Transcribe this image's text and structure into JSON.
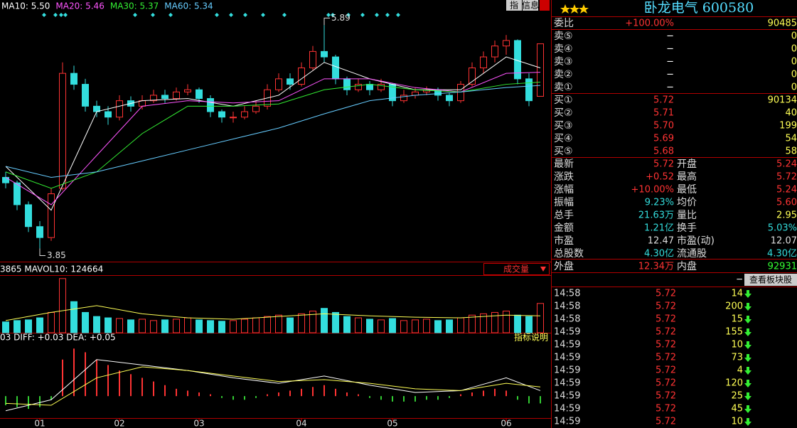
{
  "chart_data": {
    "type": "candlestick",
    "ma_legend": [
      {
        "label": "MA10: 5.50",
        "color": "#ffffff"
      },
      {
        "label": "MA20: 5.46",
        "color": "#ff55ff"
      },
      {
        "label": "MA30: 5.37",
        "color": "#33ee33"
      },
      {
        "label": "MA60: 5.34",
        "color": "#66ccff"
      }
    ],
    "ylim": [
      3.73,
      6.12
    ],
    "candles": [
      [
        4.5,
        4.55,
        4.4,
        4.45
      ],
      [
        4.45,
        4.47,
        4.2,
        4.25
      ],
      [
        4.25,
        4.28,
        4.0,
        4.05
      ],
      [
        4.05,
        4.1,
        3.85,
        3.95
      ],
      [
        3.95,
        4.4,
        3.92,
        4.35
      ],
      [
        4.4,
        5.55,
        4.38,
        5.45
      ],
      [
        5.45,
        5.52,
        5.3,
        5.35
      ],
      [
        5.35,
        5.4,
        5.1,
        5.15
      ],
      [
        5.15,
        5.2,
        5.05,
        5.1
      ],
      [
        5.1,
        5.15,
        4.98,
        5.05
      ],
      [
        5.05,
        5.25,
        5.02,
        5.2
      ],
      [
        5.2,
        5.24,
        5.1,
        5.15
      ],
      [
        5.15,
        5.25,
        5.12,
        5.2
      ],
      [
        5.2,
        5.3,
        5.18,
        5.25
      ],
      [
        5.25,
        5.3,
        5.18,
        5.22
      ],
      [
        5.22,
        5.32,
        5.2,
        5.28
      ],
      [
        5.28,
        5.35,
        5.25,
        5.3
      ],
      [
        5.3,
        5.32,
        5.18,
        5.22
      ],
      [
        5.22,
        5.25,
        5.05,
        5.1
      ],
      [
        5.1,
        5.12,
        5.0,
        5.05
      ],
      [
        5.05,
        5.1,
        5.0,
        5.05
      ],
      [
        5.05,
        5.15,
        5.03,
        5.1
      ],
      [
        5.1,
        5.2,
        5.08,
        5.15
      ],
      [
        5.15,
        5.35,
        5.12,
        5.3
      ],
      [
        5.3,
        5.45,
        5.28,
        5.4
      ],
      [
        5.4,
        5.45,
        5.3,
        5.35
      ],
      [
        5.35,
        5.55,
        5.33,
        5.5
      ],
      [
        5.5,
        5.7,
        5.48,
        5.65
      ],
      [
        5.65,
        5.89,
        5.55,
        5.6
      ],
      [
        5.6,
        5.62,
        5.35,
        5.4
      ],
      [
        5.4,
        5.42,
        5.25,
        5.3
      ],
      [
        5.3,
        5.4,
        5.28,
        5.35
      ],
      [
        5.35,
        5.38,
        5.25,
        5.3
      ],
      [
        5.3,
        5.4,
        5.28,
        5.35
      ],
      [
        5.35,
        5.36,
        5.15,
        5.2
      ],
      [
        5.2,
        5.3,
        5.18,
        5.25
      ],
      [
        5.25,
        5.32,
        5.22,
        5.28
      ],
      [
        5.28,
        5.33,
        5.25,
        5.3
      ],
      [
        5.3,
        5.32,
        5.2,
        5.25
      ],
      [
        5.25,
        5.27,
        5.15,
        5.2
      ],
      [
        5.2,
        5.38,
        5.18,
        5.35
      ],
      [
        5.35,
        5.55,
        5.33,
        5.5
      ],
      [
        5.5,
        5.65,
        5.45,
        5.6
      ],
      [
        5.6,
        5.75,
        5.55,
        5.7
      ],
      [
        5.7,
        5.8,
        5.62,
        5.75
      ],
      [
        5.75,
        5.76,
        5.35,
        5.4
      ],
      [
        5.4,
        5.45,
        5.15,
        5.2
      ],
      [
        5.24,
        5.72,
        5.24,
        5.72
      ]
    ],
    "high": {
      "index": 28,
      "value": 5.89
    },
    "low": {
      "index": 3,
      "value": 3.85
    },
    "ma": {
      "x": [
        0,
        4,
        8,
        12,
        16,
        20,
        24,
        28,
        32,
        36,
        40,
        44,
        47
      ],
      "series": [
        {
          "color": "#ffffff",
          "values": [
            4.6,
            4.2,
            5.1,
            5.2,
            5.22,
            5.15,
            5.25,
            5.55,
            5.4,
            5.3,
            5.3,
            5.6,
            5.5
          ]
        },
        {
          "color": "#ff55ff",
          "values": [
            4.5,
            4.25,
            4.7,
            5.15,
            5.2,
            5.18,
            5.2,
            5.4,
            5.4,
            5.32,
            5.28,
            5.45,
            5.46
          ]
        },
        {
          "color": "#33ee33",
          "values": [
            4.55,
            4.4,
            4.55,
            4.9,
            5.15,
            5.15,
            5.17,
            5.3,
            5.35,
            5.3,
            5.28,
            5.35,
            5.37
          ]
        },
        {
          "color": "#66ccff",
          "values": [
            4.6,
            4.5,
            4.55,
            4.65,
            4.75,
            4.85,
            4.95,
            5.08,
            5.2,
            5.25,
            5.28,
            5.32,
            5.34
          ]
        }
      ]
    },
    "volume": {
      "legend": "3865 MAVOL10: 124664",
      "ylim": [
        0,
        420000
      ],
      "values": [
        80000,
        90000,
        95000,
        110000,
        150000,
        400000,
        230000,
        150000,
        120000,
        110000,
        105000,
        95000,
        100000,
        90000,
        95000,
        100000,
        110000,
        95000,
        90000,
        85000,
        90000,
        100000,
        110000,
        120000,
        130000,
        110000,
        140000,
        160000,
        180000,
        150000,
        120000,
        110000,
        100000,
        95000,
        105000,
        90000,
        95000,
        100000,
        90000,
        95000,
        110000,
        130000,
        140000,
        150000,
        160000,
        130000,
        120000,
        216300
      ],
      "mavol": [
        90000,
        150000,
        200000,
        140000,
        110000,
        100000,
        120000,
        140000,
        125000,
        115000,
        110000,
        130000,
        124664
      ]
    },
    "macd": {
      "legend": "03 DIFF: +0.03 DEA: +0.05",
      "ylim": [
        -0.12,
        0.3
      ],
      "bars": [
        -0.05,
        -0.06,
        -0.07,
        -0.06,
        -0.02,
        0.2,
        0.26,
        0.24,
        0.2,
        0.17,
        0.14,
        0.12,
        0.1,
        0.08,
        0.06,
        0.04,
        0.03,
        0.02,
        0.01,
        -0.01,
        -0.02,
        -0.02,
        -0.01,
        0.01,
        0.02,
        0.03,
        0.04,
        0.05,
        0.06,
        0.04,
        0.02,
        0.01,
        -0.01,
        -0.02,
        -0.03,
        -0.03,
        -0.03,
        -0.02,
        -0.02,
        -0.01,
        0.01,
        0.02,
        0.03,
        0.04,
        0.03,
        -0.02,
        -0.04,
        -0.04
      ],
      "diff": [
        -0.08,
        -0.02,
        0.2,
        0.17,
        0.14,
        0.1,
        0.07,
        0.11,
        0.06,
        0.02,
        0.03,
        0.1,
        0.03
      ],
      "dea": [
        -0.04,
        -0.05,
        0.1,
        0.16,
        0.14,
        0.11,
        0.08,
        0.09,
        0.07,
        0.04,
        0.03,
        0.07,
        0.05
      ]
    },
    "months": [
      {
        "value": 3,
        "label": "01"
      },
      {
        "value": 10,
        "label": "02"
      },
      {
        "value": 17,
        "label": "03"
      },
      {
        "value": 26,
        "label": "04"
      },
      {
        "value": 34,
        "label": "05"
      },
      {
        "value": 44,
        "label": "06"
      }
    ]
  },
  "buttons": {
    "volume_select": "成交量",
    "indicator_help": "指标说明",
    "sector": "查看板块股",
    "index": "指",
    "info": "信息",
    "collapse": "−"
  },
  "panel": {
    "title": "卧龙电气 600580",
    "ratio": {
      "label": "委比",
      "value": "+100.00%",
      "qty": "90485"
    },
    "asks": [
      {
        "label": "卖⑤",
        "value": "−",
        "qty": "0"
      },
      {
        "label": "卖④",
        "value": "−",
        "qty": "0"
      },
      {
        "label": "卖③",
        "value": "−",
        "qty": "0"
      },
      {
        "label": "卖②",
        "value": "−",
        "qty": "0"
      },
      {
        "label": "卖①",
        "value": "−",
        "qty": "0"
      }
    ],
    "bids": [
      {
        "label": "买①",
        "value": "5.72",
        "qty": "90134"
      },
      {
        "label": "买②",
        "value": "5.71",
        "qty": "40"
      },
      {
        "label": "买③",
        "value": "5.70",
        "qty": "199"
      },
      {
        "label": "买④",
        "value": "5.69",
        "qty": "54"
      },
      {
        "label": "买⑤",
        "value": "5.68",
        "qty": "58"
      }
    ],
    "stats": [
      [
        "最新",
        "5.72",
        "开盘",
        "5.24"
      ],
      [
        "涨跌",
        "+0.52",
        "最高",
        "5.72"
      ],
      [
        "涨幅",
        "+10.00%",
        "最低",
        "5.24"
      ],
      [
        "振幅",
        "9.23%",
        "均价",
        "5.60"
      ],
      [
        "总手",
        "21.63万",
        "量比",
        "2.95"
      ],
      [
        "金额",
        "1.21亿",
        "换手",
        "5.03%"
      ],
      [
        "市盈",
        "12.47",
        "市盈(动)",
        "12.07"
      ],
      [
        "总股数",
        "4.30亿",
        "流通股",
        "4.30亿"
      ],
      [
        "外盘",
        "12.34万",
        "内盘",
        "92931"
      ]
    ],
    "stat_colors": [
      [
        "#ff3333",
        "#ff3333"
      ],
      [
        "#ff3333",
        "#ff3333"
      ],
      [
        "#ff3333",
        "#ff3333"
      ],
      [
        "#33dddd",
        "#ff3333"
      ],
      [
        "#33dddd",
        "#ffff55"
      ],
      [
        "#33dddd",
        "#33dddd"
      ],
      [
        "#dddddd",
        "#dddddd"
      ],
      [
        "#33dddd",
        "#33dddd"
      ],
      [
        "#ff3333",
        "#33ff33"
      ]
    ],
    "trades": [
      [
        "14:58",
        "5.72",
        "14"
      ],
      [
        "14:58",
        "5.72",
        "200"
      ],
      [
        "14:58",
        "5.72",
        "15"
      ],
      [
        "14:59",
        "5.72",
        "155"
      ],
      [
        "14:59",
        "5.72",
        "10"
      ],
      [
        "14:59",
        "5.72",
        "73"
      ],
      [
        "14:59",
        "5.72",
        "4"
      ],
      [
        "14:59",
        "5.72",
        "120"
      ],
      [
        "14:59",
        "5.72",
        "25"
      ],
      [
        "14:59",
        "5.72",
        "45"
      ],
      [
        "14:59",
        "5.72",
        "10"
      ]
    ]
  }
}
